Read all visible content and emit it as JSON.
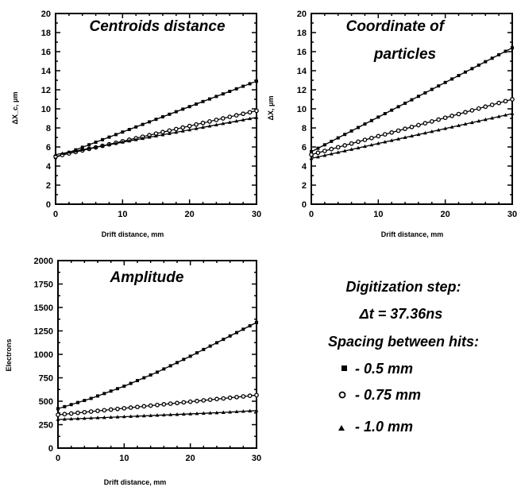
{
  "chart_data": [
    {
      "type": "line",
      "title": "Centroids distance",
      "xlabel": "Drift distance, mm",
      "ylabel": "ΔX_c, μm",
      "xlim": [
        0,
        30
      ],
      "ylim": [
        0,
        20
      ],
      "xticks": [
        "0",
        "10",
        "20",
        "30"
      ],
      "yticks": [
        "0",
        "2",
        "4",
        "6",
        "8",
        "10",
        "12",
        "14",
        "16",
        "18",
        "20"
      ],
      "x": [
        0,
        30
      ],
      "series": [
        {
          "marker": "square",
          "values": [
            4.9,
            12.9
          ]
        },
        {
          "marker": "circle",
          "values": [
            5.0,
            9.8
          ]
        },
        {
          "marker": "triangle",
          "values": [
            5.2,
            9.1
          ]
        }
      ]
    },
    {
      "type": "line",
      "title": "Coordinate of particles",
      "xlabel": "Drift distance, mm",
      "ylabel": "ΔX, μm",
      "xlim": [
        0,
        30
      ],
      "ylim": [
        0,
        20
      ],
      "xticks": [
        "0",
        "10",
        "20",
        "30"
      ],
      "yticks": [
        "0",
        "2",
        "4",
        "6",
        "8",
        "10",
        "12",
        "14",
        "16",
        "18",
        "20"
      ],
      "x": [
        0,
        30
      ],
      "series": [
        {
          "marker": "square",
          "values": [
            5.5,
            16.4
          ]
        },
        {
          "marker": "circle",
          "values": [
            5.2,
            11.0
          ]
        },
        {
          "marker": "triangle",
          "values": [
            4.8,
            9.5
          ]
        }
      ]
    },
    {
      "type": "line",
      "title": "Amplitude",
      "xlabel": "Drift distance, mm",
      "ylabel": "Electrons",
      "xlim": [
        0,
        30
      ],
      "ylim": [
        0,
        2000
      ],
      "xticks": [
        "0",
        "10",
        "20",
        "30"
      ],
      "yticks": [
        "0",
        "250",
        "500",
        "750",
        "1000",
        "1250",
        "1500",
        "1750",
        "2000"
      ],
      "x": [
        0,
        5,
        10,
        15,
        20,
        25,
        30
      ],
      "series": [
        {
          "marker": "square",
          "values": [
            420,
            530,
            660,
            810,
            980,
            1160,
            1340
          ]
        },
        {
          "marker": "circle",
          "values": [
            355,
            390,
            425,
            460,
            495,
            530,
            565
          ]
        },
        {
          "marker": "triangle",
          "values": [
            305,
            320,
            335,
            350,
            365,
            380,
            400
          ]
        }
      ]
    }
  ],
  "legend": {
    "line1": "Digitization step:",
    "line2": "Δt = 37.36ns",
    "line3": "Spacing between hits:",
    "items": [
      {
        "marker": "square",
        "label": "- 0.5 mm"
      },
      {
        "marker": "circle",
        "label": "- 0.75 mm"
      },
      {
        "marker": "triangle",
        "label": "- 1.0 mm"
      }
    ]
  }
}
